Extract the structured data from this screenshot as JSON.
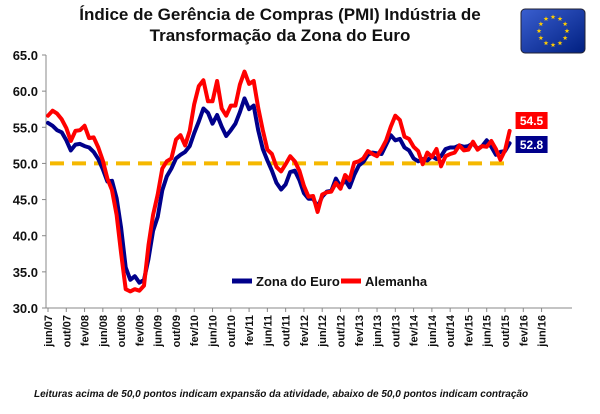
{
  "title": {
    "line1": "Índice de Gerência de Compras (PMI) Indústria de",
    "line2": "Transformação da Zona do Euro"
  },
  "footnote": "Leituras acima de 50,0 pontos indicam expansão da atividade, abaixo de 50,0 pontos indicam contração",
  "colors": {
    "zona": "#00008b",
    "alemanha": "#ff0000",
    "reference": "#f5b800",
    "flag_bg": "#003399",
    "flag_star": "#ffcc00"
  },
  "chart_data": {
    "type": "line",
    "ylim": [
      30,
      65
    ],
    "yticks": [
      "30.0",
      "35.0",
      "40.0",
      "45.0",
      "50.0",
      "55.0",
      "60.0",
      "65.0"
    ],
    "xticks": [
      "jun/07",
      "out/07",
      "fev/08",
      "jun/08",
      "out/08",
      "fev/09",
      "jun/09",
      "out/09",
      "fev/10",
      "jun/10",
      "out/10",
      "fev/11",
      "jun/11",
      "out/11",
      "fev/12",
      "jun/12",
      "out/12",
      "fev/13",
      "jun/13",
      "out/13",
      "fev/14",
      "jun/14",
      "out/14",
      "fev/15",
      "jun/15",
      "out/15",
      "fev/16",
      "jun/16"
    ],
    "reference_line": 50.0,
    "legend": {
      "placement": "bottom-center"
    },
    "series": [
      {
        "name": "Zona do Euro",
        "color": "#00008b",
        "end_label": "52.8",
        "values": [
          55.6,
          55.2,
          54.6,
          54.3,
          53.2,
          51.8,
          52.6,
          52.7,
          52.4,
          52.2,
          51.6,
          50.6,
          49.2,
          47.5,
          47.6,
          45.2,
          41.1,
          35.6,
          33.9,
          34.4,
          33.5,
          33.9,
          36.8,
          40.7,
          42.6,
          46.3,
          48.2,
          49.3,
          50.7,
          51.2,
          51.6,
          52.4,
          54.2,
          55.8,
          57.6,
          57.0,
          55.5,
          56.7,
          55.1,
          53.8,
          54.6,
          55.5,
          57.1,
          59.0,
          57.5,
          58.0,
          54.6,
          52.0,
          50.4,
          49.0,
          47.3,
          46.4,
          47.1,
          48.8,
          49.0,
          47.7,
          45.9,
          45.1,
          45.1,
          44.0,
          45.4,
          46.1,
          46.2,
          47.9,
          46.8,
          47.7,
          46.7,
          48.4,
          49.7,
          50.2,
          51.2,
          51.5,
          51.4,
          51.3,
          52.6,
          53.9,
          53.2,
          53.4,
          52.2,
          51.8,
          50.7,
          50.3,
          50.6,
          50.4,
          51.0,
          50.6,
          51.0,
          52.0,
          52.2,
          52.2,
          52.5,
          52.3,
          52.4,
          52.8,
          52.0,
          52.4,
          53.2,
          52.3,
          51.2,
          51.6,
          51.7,
          52.8
        ]
      },
      {
        "name": "Alemanha",
        "color": "#ff0000",
        "end_label": "54.5",
        "values": [
          56.6,
          57.3,
          56.9,
          56.1,
          54.9,
          53.1,
          54.5,
          54.6,
          55.2,
          53.5,
          53.6,
          52.2,
          50.4,
          47.9,
          46.3,
          42.9,
          37.6,
          32.6,
          32.3,
          32.6,
          32.4,
          33.1,
          38.7,
          42.9,
          45.7,
          49.3,
          50.3,
          50.7,
          53.3,
          53.9,
          52.5,
          54.5,
          58.2,
          60.7,
          61.5,
          58.6,
          58.6,
          61.4,
          57.6,
          56.6,
          58.0,
          58.0,
          60.9,
          62.7,
          61.0,
          61.4,
          57.7,
          54.6,
          51.9,
          51.3,
          49.5,
          48.9,
          49.9,
          51.0,
          50.3,
          49.0,
          46.9,
          45.4,
          45.5,
          43.3,
          45.7,
          46.0,
          46.1,
          47.3,
          46.5,
          48.4,
          47.7,
          50.1,
          50.3,
          50.7,
          51.7,
          51.3,
          51.0,
          52.0,
          53.2,
          55.1,
          56.6,
          56.0,
          53.7,
          53.4,
          52.3,
          51.7,
          49.9,
          51.5,
          50.9,
          52.0,
          49.6,
          51.0,
          51.3,
          51.5,
          52.5,
          51.8,
          51.9,
          53.0,
          51.9,
          52.4,
          52.3,
          53.1,
          52.0,
          50.5,
          51.8,
          54.5
        ]
      }
    ]
  }
}
